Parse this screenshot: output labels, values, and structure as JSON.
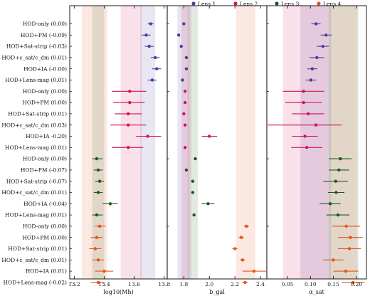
{
  "chart_data": {
    "type": "scatter",
    "subtype": "forest-plot-errorbars",
    "legend": {
      "placement": "top-right",
      "entries": [
        {
          "name": "Lens 1",
          "color": "#4b3d9a"
        },
        {
          "name": "Lens 2",
          "color": "#d1135a"
        },
        {
          "name": "Lens 3",
          "color": "#1e5a1e"
        },
        {
          "name": "Lens 4",
          "color": "#e3541b"
        }
      ]
    },
    "row_labels": [
      "HOD-only (0.00)",
      "HOD+PM (-0.09)",
      "HOD+Sat-strip (-0.03)",
      "HOD+c_sat/c_dm (0.01)",
      "HOD+IA (-0.00)",
      "HOD+Lens-mag (0.01)",
      "HOD-only (0.00)",
      "HOD+PM (0.00)",
      "HOD+Sat-strip (0.01)",
      "HOD+c_sat/c_dm (0.03)",
      "HOD+IA -0.20)",
      "HOD+Lens-mag (0.01)",
      "HOD-only (0.00)",
      "HOD+PM (-0.07)",
      "HOD+Sat-strip (-0.07)",
      "HOD+c_sat/c_dm (0.01)",
      "HOD+IA (-0.04)",
      "HOD+Lens-mag (0.01)",
      "HOD-only (0.00)",
      "HOD+PM (0.00)",
      "HOD+Sat-strip (0.01)",
      "HOD+c_sat/c_dm (0.01)",
      "HOD+IA (0.01)",
      "HOD+Lens-mag (-0.02)"
    ],
    "row_lens": [
      0,
      0,
      0,
      0,
      0,
      0,
      1,
      1,
      1,
      1,
      1,
      1,
      2,
      2,
      2,
      2,
      2,
      2,
      3,
      3,
      3,
      3,
      3,
      3
    ],
    "panels": [
      {
        "xlabel": "log10(Mh)",
        "xlim": [
          13.17,
          13.82
        ],
        "ticks": [
          13.2,
          13.4,
          13.6,
          13.8
        ],
        "tick_labels": [
          "13.2",
          "13.4",
          "13.6",
          "13.8"
        ],
        "bands": [
          {
            "lens": 0,
            "range": [
              13.64,
              13.74
            ]
          },
          {
            "lens": 1,
            "range": [
              13.51,
              13.65
            ]
          },
          {
            "lens": 2,
            "range": [
              13.32,
              13.4
            ]
          },
          {
            "lens": 3,
            "range": [
              13.25,
              13.42
            ]
          }
        ],
        "points": [
          {
            "value": 13.71,
            "lo": 13.69,
            "hi": 13.73
          },
          {
            "value": 13.68,
            "lo": 13.65,
            "hi": 13.71
          },
          {
            "value": 13.7,
            "lo": 13.67,
            "hi": 13.73
          },
          {
            "value": 13.74,
            "lo": 13.71,
            "hi": 13.77
          },
          {
            "value": 13.75,
            "lo": 13.72,
            "hi": 13.78
          },
          {
            "value": 13.72,
            "lo": 13.69,
            "hi": 13.75
          },
          {
            "value": 13.57,
            "lo": 13.45,
            "hi": 13.68
          },
          {
            "value": 13.57,
            "lo": 13.46,
            "hi": 13.67
          },
          {
            "value": 13.56,
            "lo": 13.47,
            "hi": 13.65
          },
          {
            "value": 13.56,
            "lo": 13.44,
            "hi": 13.68
          },
          {
            "value": 13.69,
            "lo": 13.61,
            "hi": 13.78
          },
          {
            "value": 13.56,
            "lo": 13.45,
            "hi": 13.66
          },
          {
            "value": 13.35,
            "lo": 13.32,
            "hi": 13.39
          },
          {
            "value": 13.36,
            "lo": 13.33,
            "hi": 13.39
          },
          {
            "value": 13.37,
            "lo": 13.34,
            "hi": 13.4
          },
          {
            "value": 13.36,
            "lo": 13.33,
            "hi": 13.39
          },
          {
            "value": 13.44,
            "lo": 13.39,
            "hi": 13.49
          },
          {
            "value": 13.35,
            "lo": 13.32,
            "hi": 13.39
          },
          {
            "value": 13.37,
            "lo": 13.34,
            "hi": 13.41
          },
          {
            "value": 13.35,
            "lo": 13.31,
            "hi": 13.39
          },
          {
            "value": 13.34,
            "lo": 13.3,
            "hi": 13.38
          },
          {
            "value": 13.36,
            "lo": 13.32,
            "hi": 13.4
          },
          {
            "value": 13.4,
            "lo": 13.34,
            "hi": 13.46
          },
          {
            "value": 13.36,
            "lo": 13.31,
            "hi": 13.4
          }
        ]
      },
      {
        "xlabel": "b_gal",
        "xlim": [
          1.67,
          2.45
        ],
        "ticks": [
          1.8,
          2.0,
          2.2,
          2.4
        ],
        "tick_labels": [
          "1.8",
          "2.0",
          "2.2",
          "2.4"
        ],
        "bands": [
          {
            "lens": 0,
            "range": [
              1.75,
              1.84
            ]
          },
          {
            "lens": 1,
            "range": [
              1.78,
              1.86
            ]
          },
          {
            "lens": 2,
            "range": [
              1.83,
              1.91
            ]
          },
          {
            "lens": 3,
            "range": [
              2.21,
              2.36
            ]
          }
        ],
        "points": [
          {
            "value": 1.8,
            "lo": 1.79,
            "hi": 1.81
          },
          {
            "value": 1.76,
            "lo": 1.75,
            "hi": 1.77
          },
          {
            "value": 1.78,
            "lo": 1.77,
            "hi": 1.79
          },
          {
            "value": 1.82,
            "lo": 1.81,
            "hi": 1.83
          },
          {
            "value": 1.82,
            "lo": 1.81,
            "hi": 1.83
          },
          {
            "value": 1.79,
            "lo": 1.78,
            "hi": 1.8
          },
          {
            "value": 1.81,
            "lo": 1.8,
            "hi": 1.82
          },
          {
            "value": 1.81,
            "lo": 1.8,
            "hi": 1.82
          },
          {
            "value": 1.8,
            "lo": 1.79,
            "hi": 1.81
          },
          {
            "value": 1.81,
            "lo": 1.8,
            "hi": 1.82
          },
          {
            "value": 2.0,
            "lo": 1.94,
            "hi": 2.06
          },
          {
            "value": 1.81,
            "lo": 1.8,
            "hi": 1.82
          },
          {
            "value": 1.89,
            "lo": 1.88,
            "hi": 1.9
          },
          {
            "value": 1.82,
            "lo": 1.81,
            "hi": 1.83
          },
          {
            "value": 1.87,
            "lo": 1.86,
            "hi": 1.88
          },
          {
            "value": 1.87,
            "lo": 1.86,
            "hi": 1.88
          },
          {
            "value": 1.99,
            "lo": 1.94,
            "hi": 2.04
          },
          {
            "value": 1.88,
            "lo": 1.87,
            "hi": 1.89
          },
          {
            "value": 2.29,
            "lo": 2.27,
            "hi": 2.31
          },
          {
            "value": 2.25,
            "lo": 2.23,
            "hi": 2.27
          },
          {
            "value": 2.2,
            "lo": 2.18,
            "hi": 2.22
          },
          {
            "value": 2.26,
            "lo": 2.24,
            "hi": 2.28
          },
          {
            "value": 2.35,
            "lo": 2.26,
            "hi": 2.45
          },
          {
            "value": 2.28,
            "lo": 2.26,
            "hi": 2.3
          }
        ]
      },
      {
        "xlabel": "α_sat",
        "xlim": [
          0.005,
          0.222
        ],
        "ticks": [
          0.05,
          0.1,
          0.15,
          0.2
        ],
        "tick_labels": [
          "0.05",
          "0.10",
          "0.15",
          "0.20"
        ],
        "bands": [
          {
            "lens": 0,
            "range": [
              0.078,
              0.145
            ]
          },
          {
            "lens": 1,
            "range": [
              0.04,
              0.138
            ]
          },
          {
            "lens": 2,
            "range": [
              0.138,
              0.205
            ]
          },
          {
            "lens": 3,
            "range": [
              0.14,
              0.202
            ]
          }
        ],
        "points": [
          {
            "value": 0.112,
            "lo": 0.102,
            "hi": 0.122
          },
          {
            "value": 0.134,
            "lo": 0.122,
            "hi": 0.146
          },
          {
            "value": 0.127,
            "lo": 0.114,
            "hi": 0.14
          },
          {
            "value": 0.114,
            "lo": 0.098,
            "hi": 0.13
          },
          {
            "value": 0.104,
            "lo": 0.093,
            "hi": 0.115
          },
          {
            "value": 0.101,
            "lo": 0.09,
            "hi": 0.112
          },
          {
            "value": 0.085,
            "lo": 0.04,
            "hi": 0.13
          },
          {
            "value": 0.085,
            "lo": 0.045,
            "hi": 0.125
          },
          {
            "value": 0.095,
            "lo": 0.06,
            "hi": 0.13
          },
          {
            "value": 0.112,
            "lo": 0.007,
            "hi": 0.168
          },
          {
            "value": 0.088,
            "lo": 0.06,
            "hi": 0.116
          },
          {
            "value": 0.092,
            "lo": 0.058,
            "hi": 0.126
          },
          {
            "value": 0.165,
            "lo": 0.14,
            "hi": 0.19
          },
          {
            "value": 0.162,
            "lo": 0.14,
            "hi": 0.184
          },
          {
            "value": 0.155,
            "lo": 0.128,
            "hi": 0.182
          },
          {
            "value": 0.156,
            "lo": 0.138,
            "hi": 0.174
          },
          {
            "value": 0.143,
            "lo": 0.12,
            "hi": 0.166
          },
          {
            "value": 0.16,
            "lo": 0.135,
            "hi": 0.185
          },
          {
            "value": 0.178,
            "lo": 0.148,
            "hi": 0.208
          },
          {
            "value": 0.187,
            "lo": 0.16,
            "hi": 0.214
          },
          {
            "value": 0.185,
            "lo": 0.16,
            "hi": 0.21
          },
          {
            "value": 0.15,
            "lo": 0.128,
            "hi": 0.172
          },
          {
            "value": 0.177,
            "lo": 0.15,
            "hi": 0.204
          },
          {
            "value": 0.193,
            "lo": 0.168,
            "hi": 0.218
          }
        ]
      }
    ]
  }
}
